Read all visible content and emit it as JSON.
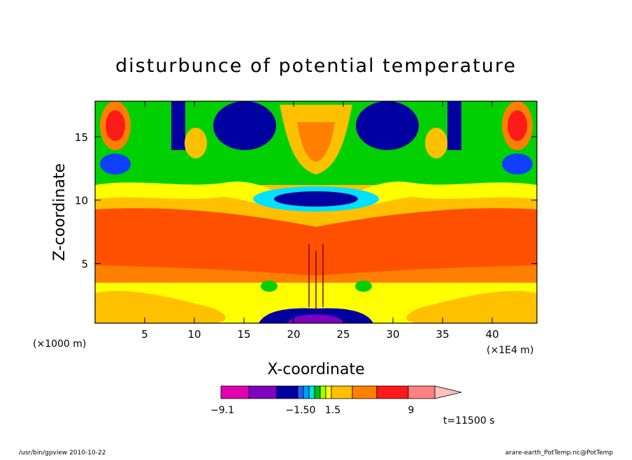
{
  "chart_data": {
    "type": "heatmap",
    "title": "disturbunce of potential temperature",
    "xlabel": "X-coordinate",
    "ylabel": "Z-coordinate",
    "x_units_left": "(×1000 m)",
    "x_units_right": "(×1E4 m)",
    "xlim": [
      0,
      44.5
    ],
    "ylim": [
      0.3,
      17.8
    ],
    "x_ticks": [
      "5",
      "10",
      "15",
      "20",
      "25",
      "30",
      "35",
      "40"
    ],
    "x_tick_values": [
      5,
      10,
      15,
      20,
      25,
      30,
      35,
      40
    ],
    "y_ticks": [
      "5",
      "10",
      "15"
    ],
    "y_tick_values": [
      5,
      10,
      15
    ],
    "time_label": "t=11500 s",
    "colorbar": {
      "labels": [
        "−9.1",
        "−1.50",
        "1.5",
        "9"
      ],
      "colors": [
        "#e000b0",
        "#8000c0",
        "#0000a0",
        "#2060ff",
        "#00a0ff",
        "#00e0e0",
        "#00c000",
        "#a0ff00",
        "#ffff00",
        "#ffc000",
        "#ff8000",
        "#ff1a1a",
        "#ff8080",
        "#ffc0c0"
      ]
    },
    "colors": {
      "deep_neg": "#0000a0",
      "neg": "#1040ff",
      "light_neg": "#00e0ff",
      "near_zero": "#00d000",
      "small_pos": "#ffff00",
      "pos": "#ffc000",
      "mid_pos": "#ff8000",
      "strong_pos": "#ff5000",
      "max_pos": "#ff1a1a"
    }
  },
  "footer": {
    "left": "/usr/bin/gpview  2010-10-22",
    "right": "arare-earth_PotTemp.nc@PotTemp"
  }
}
